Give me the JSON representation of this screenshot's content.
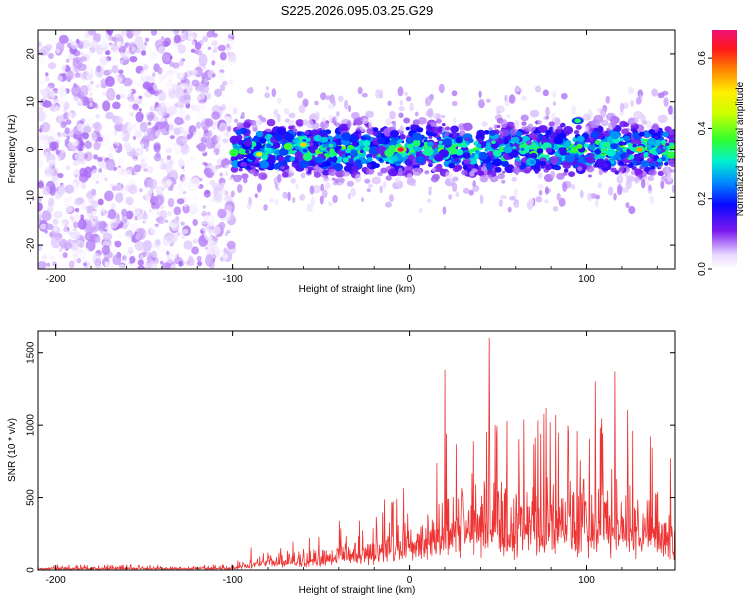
{
  "title": "S225.2026.095.03.25.G29",
  "chart_data": [
    {
      "type": "heatmap",
      "xlabel": "Height of straight line (km)",
      "ylabel": "Frequency (Hz)",
      "xlim": [
        -210,
        150
      ],
      "ylim": [
        -25,
        25
      ],
      "xticks": [
        -200,
        -100,
        0,
        100
      ],
      "yticks": [
        20,
        10,
        0,
        -10,
        -20
      ],
      "grid": false,
      "colorbar": {
        "label": "Normalized spectral amplitude",
        "range": [
          0.0,
          0.68
        ],
        "ticks": [
          "0.0",
          "0.2",
          "0.4",
          "0.6"
        ],
        "tick_values": [
          0.0,
          0.2,
          0.4,
          0.6
        ],
        "colormap": "rainbow_white_low"
      },
      "regions": [
        {
          "x_range": [
            -210,
            -100
          ],
          "y_range": [
            -25,
            25
          ],
          "amplitude": 0.05,
          "description_level": "noise"
        },
        {
          "x_range": [
            -100,
            150
          ],
          "y_center": 0,
          "y_halfwidth": 4,
          "amplitude_range": [
            0.1,
            0.68
          ]
        }
      ],
      "hotspots": [
        {
          "x": -5,
          "y": 0,
          "amplitude": 0.66
        },
        {
          "x": -60,
          "y": 1,
          "amplitude": 0.52
        },
        {
          "x": -85,
          "y": -1,
          "amplitude": 0.48
        },
        {
          "x": 130,
          "y": 0,
          "amplitude": 0.55
        },
        {
          "x": 95,
          "y": 6,
          "amplitude": 0.35
        }
      ]
    },
    {
      "type": "line",
      "xlabel": "Height of straight line (km)",
      "ylabel": "SNR (10 * v/v)",
      "xlim": [
        -210,
        150
      ],
      "ylim": [
        0,
        1650
      ],
      "xticks": [
        -200,
        -100,
        0,
        100
      ],
      "yticks": [
        0,
        500,
        1000,
        1500
      ],
      "grid": false,
      "color": "#ee3333",
      "envelope": [
        {
          "x": -210,
          "mean": 18,
          "peak": 35
        },
        {
          "x": -100,
          "mean": 20,
          "peak": 40
        },
        {
          "x": -90,
          "mean": 60,
          "peak": 160
        },
        {
          "x": -80,
          "mean": 90,
          "peak": 240
        },
        {
          "x": -60,
          "mean": 100,
          "peak": 200
        },
        {
          "x": -40,
          "mean": 150,
          "peak": 350
        },
        {
          "x": -20,
          "mean": 200,
          "peak": 450
        },
        {
          "x": 0,
          "mean": 280,
          "peak": 700
        },
        {
          "x": 20,
          "mean": 380,
          "peak": 1050
        },
        {
          "x": 40,
          "mean": 480,
          "peak": 1200
        },
        {
          "x": 60,
          "mean": 470,
          "peak": 1050
        },
        {
          "x": 80,
          "mean": 500,
          "peak": 1150
        },
        {
          "x": 100,
          "mean": 500,
          "peak": 1150
        },
        {
          "x": 120,
          "mean": 480,
          "peak": 1300
        },
        {
          "x": 150,
          "mean": 420,
          "peak": 800
        }
      ],
      "peaks": [
        {
          "x": 45,
          "y": 1600
        },
        {
          "x": 20,
          "y": 1380
        },
        {
          "x": 116,
          "y": 1370
        },
        {
          "x": 105,
          "y": 1300
        }
      ]
    }
  ]
}
